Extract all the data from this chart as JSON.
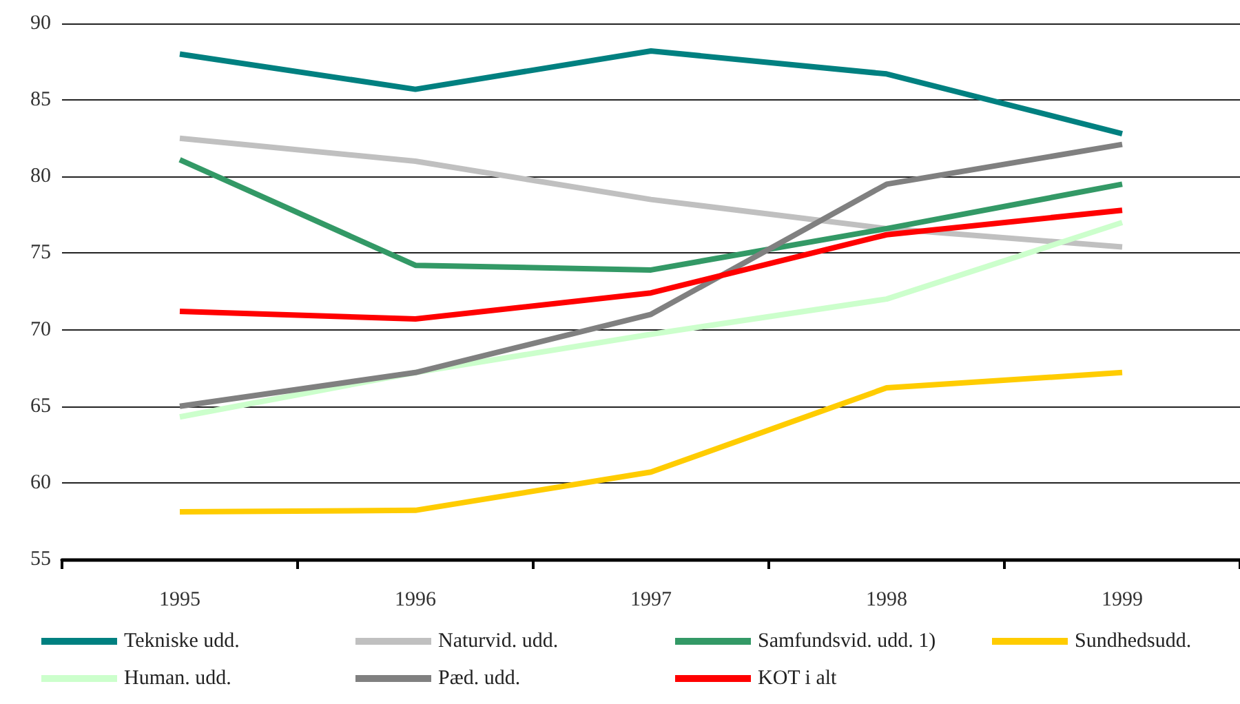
{
  "chart_data": {
    "type": "line",
    "categories": [
      "1995",
      "1996",
      "1997",
      "1998",
      "1999"
    ],
    "series": [
      {
        "name": "Tekniske udd.",
        "color": "#008080",
        "values": [
          88.0,
          85.7,
          88.2,
          86.7,
          82.8
        ]
      },
      {
        "name": "Naturvid. udd.",
        "color": "#c0c0c0",
        "values": [
          82.5,
          81.0,
          78.5,
          76.6,
          75.4
        ]
      },
      {
        "name": "Samfundsvid. udd. 1)",
        "color": "#339966",
        "values": [
          81.1,
          74.2,
          73.9,
          76.6,
          79.5
        ]
      },
      {
        "name": "Sundhedsudd.",
        "color": "#ffcc00",
        "values": [
          58.1,
          58.2,
          60.7,
          66.2,
          67.2
        ]
      },
      {
        "name": "Human. udd.",
        "color": "#ccffcc",
        "values": [
          64.3,
          67.2,
          69.7,
          72.0,
          77.0
        ]
      },
      {
        "name": "Pæd. udd.",
        "color": "#808080",
        "values": [
          65.0,
          67.2,
          71.0,
          79.5,
          82.1
        ]
      },
      {
        "name": "KOT i alt",
        "color": "#ff0000",
        "values": [
          71.2,
          70.7,
          72.4,
          76.2,
          77.8
        ]
      }
    ],
    "ylim": [
      55,
      90
    ],
    "yticks": [
      55,
      60,
      65,
      70,
      75,
      80,
      85,
      90
    ],
    "grid": "y",
    "legend": "bottom",
    "marker": "none",
    "line_style": "solid"
  }
}
